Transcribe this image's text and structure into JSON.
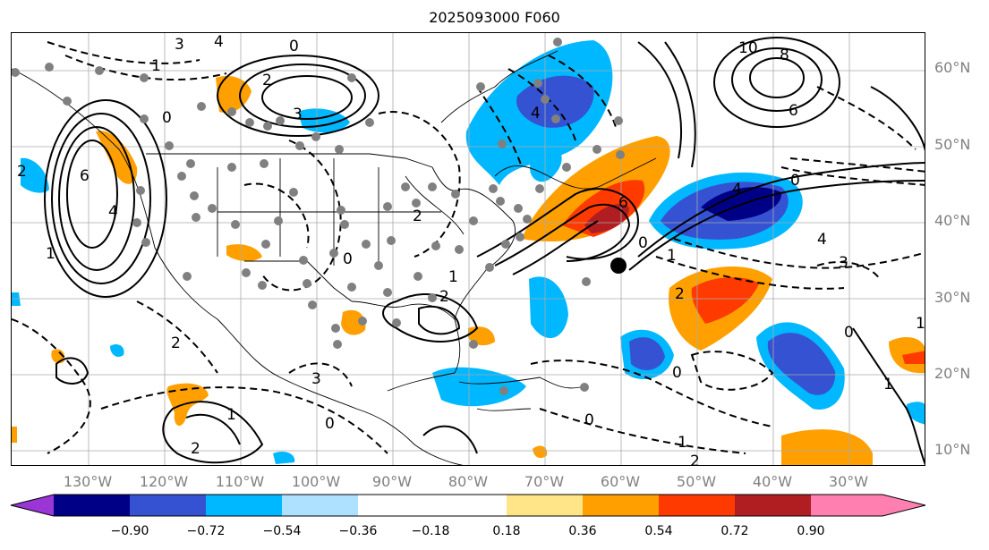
{
  "title": "2025093000 F060",
  "lat_labels": [
    "60°N",
    "50°N",
    "40°N",
    "30°N",
    "20°N",
    "10°N"
  ],
  "lon_labels": [
    "130°W",
    "120°W",
    "110°W",
    "100°W",
    "90°W",
    "80°W",
    "70°W",
    "60°W",
    "50°W",
    "40°W",
    "30°W"
  ],
  "colorbar": {
    "ticks": [
      "−0.90",
      "−0.72",
      "−0.54",
      "−0.36",
      "−0.18",
      "0.18",
      "0.36",
      "0.54",
      "0.72",
      "0.90"
    ],
    "colors": {
      "below": "#9a35d6",
      "c1": "#000087",
      "c2": "#3552d2",
      "c3": "#00b8ff",
      "c4": "#aee0ff",
      "c5": "#ffffff",
      "c6": "#ffe587",
      "c7": "#ffa000",
      "c8": "#ff3a00",
      "c9": "#b01e22",
      "above": "#ff80b0"
    }
  },
  "contour_labels": [
    "3",
    "4",
    "0",
    "2",
    "1",
    "0",
    "3",
    "6",
    "4",
    "2",
    "1",
    "0",
    "10",
    "8",
    "6",
    "4",
    "0",
    "4",
    "3",
    "2",
    "1",
    "0",
    "2",
    "6",
    "4",
    "2",
    "1",
    "3",
    "0",
    "2",
    "1",
    "0",
    "1",
    "2",
    "0",
    "1",
    "0",
    "1",
    "2"
  ]
}
